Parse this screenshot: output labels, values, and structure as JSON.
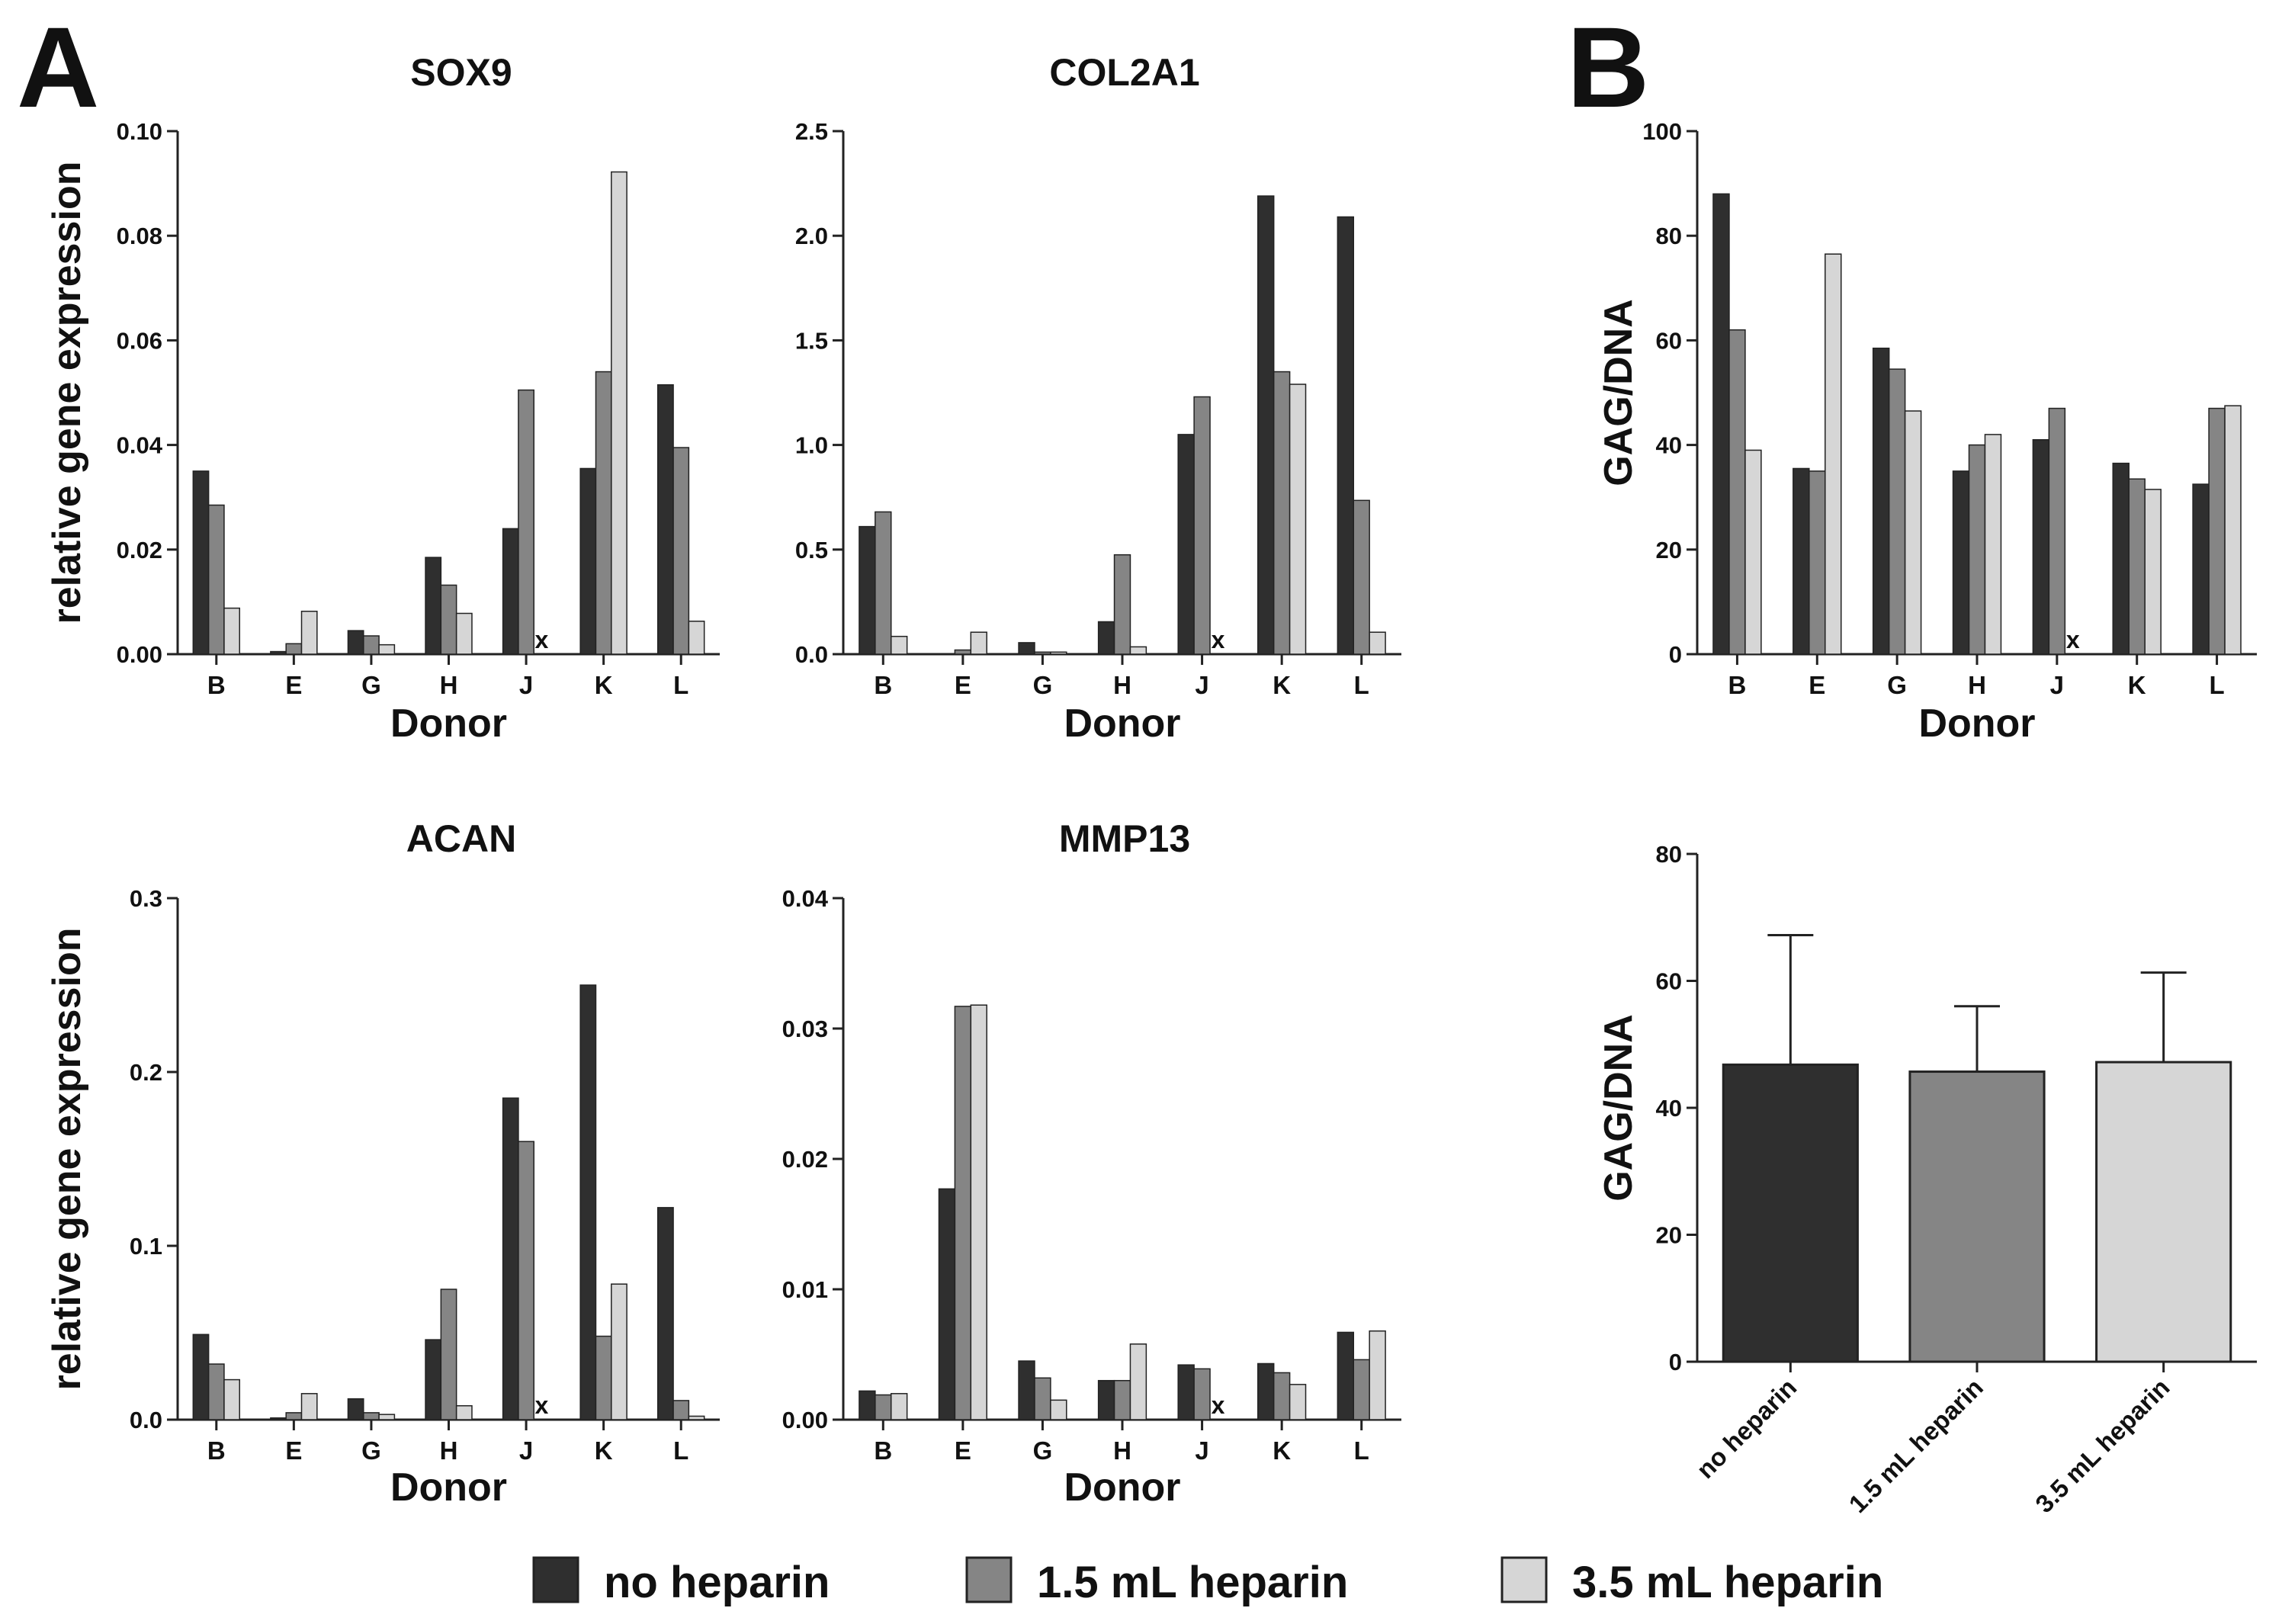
{
  "panel_letters": [
    "A",
    "B"
  ],
  "colors": {
    "no_heparin": "#2f2f2f",
    "heparin_1_5": "#858585",
    "heparin_3_5": "#d6d6d6",
    "axis": "#222222"
  },
  "legend": {
    "items": [
      {
        "label": "no heparin",
        "color": "#2f2f2f"
      },
      {
        "label": "1.5 mL heparin",
        "color": "#858585"
      },
      {
        "label": "3.5 mL heparin",
        "color": "#d6d6d6"
      }
    ]
  },
  "missing_marker": "x",
  "chart_data": [
    {
      "type": "bar",
      "title": "SOX9",
      "xlabel": "Donor",
      "ylabel": "relative gene expression",
      "ylim": [
        0,
        0.1
      ],
      "yticks": [
        "0.00",
        "0.02",
        "0.04",
        "0.06",
        "0.08",
        "0.10"
      ],
      "categories": [
        "B",
        "E",
        "G",
        "H",
        "J",
        "K",
        "L"
      ],
      "series": [
        {
          "name": "no heparin",
          "values": [
            0.035,
            0.0005,
            0.0045,
            0.0185,
            0.024,
            0.0355,
            0.0515
          ]
        },
        {
          "name": "1.5 mL heparin",
          "values": [
            0.0285,
            0.002,
            0.0035,
            0.0132,
            0.0505,
            0.054,
            0.0395
          ]
        },
        {
          "name": "3.5 mL heparin",
          "values": [
            0.0088,
            0.0082,
            0.0018,
            0.0078,
            null,
            0.0922,
            0.0063
          ]
        }
      ]
    },
    {
      "type": "bar",
      "title": "COL2A1",
      "xlabel": "Donor",
      "ylabel": "",
      "ylim": [
        0,
        2.5
      ],
      "yticks": [
        "0.0",
        "0.5",
        "1.0",
        "1.5",
        "2.0",
        "2.5"
      ],
      "categories": [
        "B",
        "E",
        "G",
        "H",
        "J",
        "K",
        "L"
      ],
      "series": [
        {
          "name": "no heparin",
          "values": [
            0.61,
            0.0,
            0.055,
            0.155,
            1.05,
            2.19,
            2.09
          ]
        },
        {
          "name": "1.5 mL heparin",
          "values": [
            0.68,
            0.02,
            0.01,
            0.475,
            1.23,
            1.35,
            0.735
          ]
        },
        {
          "name": "3.5 mL heparin",
          "values": [
            0.085,
            0.105,
            0.01,
            0.035,
            null,
            1.29,
            0.105
          ]
        }
      ]
    },
    {
      "type": "bar",
      "title": "ACAN",
      "xlabel": "Donor",
      "ylabel": "relative gene expression",
      "ylim": [
        0,
        0.3
      ],
      "yticks": [
        "0.0",
        "0.1",
        "0.2",
        "0.3"
      ],
      "categories": [
        "B",
        "E",
        "G",
        "H",
        "J",
        "K",
        "L"
      ],
      "series": [
        {
          "name": "no heparin",
          "values": [
            0.049,
            0.001,
            0.012,
            0.046,
            0.185,
            0.25,
            0.122
          ]
        },
        {
          "name": "1.5 mL heparin",
          "values": [
            0.032,
            0.004,
            0.004,
            0.075,
            0.16,
            0.048,
            0.011
          ]
        },
        {
          "name": "3.5 mL heparin",
          "values": [
            0.023,
            0.015,
            0.003,
            0.008,
            null,
            0.078,
            0.002
          ]
        }
      ]
    },
    {
      "type": "bar",
      "title": "MMP13",
      "xlabel": "Donor",
      "ylabel": "",
      "ylim": [
        0,
        0.04
      ],
      "yticks": [
        "0.00",
        "0.01",
        "0.02",
        "0.03",
        "0.04"
      ],
      "categories": [
        "B",
        "E",
        "G",
        "H",
        "J",
        "K",
        "L"
      ],
      "series": [
        {
          "name": "no heparin",
          "values": [
            0.0022,
            0.0177,
            0.0045,
            0.003,
            0.0042,
            0.0043,
            0.0067
          ]
        },
        {
          "name": "1.5 mL heparin",
          "values": [
            0.0019,
            0.0317,
            0.0032,
            0.003,
            0.0039,
            0.0036,
            0.0046
          ]
        },
        {
          "name": "3.5 mL heparin",
          "values": [
            0.002,
            0.0318,
            0.0015,
            0.0058,
            null,
            0.0027,
            0.0068
          ]
        }
      ]
    },
    {
      "type": "bar",
      "title": "",
      "xlabel": "Donor",
      "ylabel": "GAG/DNA",
      "ylim": [
        0,
        100
      ],
      "yticks": [
        "0",
        "20",
        "40",
        "60",
        "80",
        "100"
      ],
      "categories": [
        "B",
        "E",
        "G",
        "H",
        "J",
        "K",
        "L"
      ],
      "series": [
        {
          "name": "no heparin",
          "values": [
            88,
            35.5,
            58.5,
            35,
            41,
            36.5,
            32.5
          ]
        },
        {
          "name": "1.5 mL heparin",
          "values": [
            62,
            35,
            54.5,
            40,
            47,
            33.5,
            47
          ]
        },
        {
          "name": "3.5 mL heparin",
          "values": [
            39,
            76.5,
            46.5,
            42,
            null,
            31.5,
            47.5
          ]
        }
      ]
    },
    {
      "type": "bar",
      "title": "",
      "xlabel": "",
      "ylabel": "GAG/DNA",
      "ylim": [
        0,
        80
      ],
      "yticks": [
        "0",
        "20",
        "40",
        "60",
        "80"
      ],
      "categories": [
        "no heparin",
        "1.5 mL heparin",
        "3.5 mL heparin"
      ],
      "values": [
        46.8,
        45.7,
        47.2
      ],
      "error_upper": [
        67.2,
        56.0,
        61.3
      ]
    }
  ]
}
